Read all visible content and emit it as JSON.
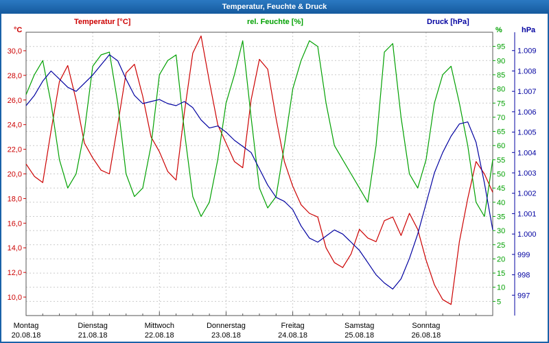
{
  "window": {
    "title": "Temperatur, Feuchte & Druck"
  },
  "chart_data": {
    "type": "line",
    "title": "Temperatur, Feuchte & Druck",
    "sample_interval_hours": 3,
    "grid": true,
    "legend_position": "top",
    "x_days": [
      {
        "weekday": "Montag",
        "date": "20.08.18"
      },
      {
        "weekday": "Dienstag",
        "date": "21.08.18"
      },
      {
        "weekday": "Mittwoch",
        "date": "22.08.18"
      },
      {
        "weekday": "Donnerstag",
        "date": "23.08.18"
      },
      {
        "weekday": "Freitag",
        "date": "24.08.18"
      },
      {
        "weekday": "Samstag",
        "date": "25.08.18"
      },
      {
        "weekday": "Sonntag",
        "date": "26.08.18"
      }
    ],
    "axes": {
      "temp": {
        "unit": "°C",
        "title": "Temperatur [°C]",
        "color": "#cc0000",
        "side": "left",
        "min": 8.5,
        "max": 31.5,
        "ticks": [
          {
            "v": 30,
            "label": "30,0"
          },
          {
            "v": 28,
            "label": "28,0"
          },
          {
            "v": 26,
            "label": "26,0"
          },
          {
            "v": 24,
            "label": "24,0"
          },
          {
            "v": 22,
            "label": "22,0"
          },
          {
            "v": 20,
            "label": "20,0"
          },
          {
            "v": 18,
            "label": "18,0"
          },
          {
            "v": 16,
            "label": "16,0"
          },
          {
            "v": 14,
            "label": "14,0"
          },
          {
            "v": 12,
            "label": "12,0"
          },
          {
            "v": 10,
            "label": "10,0"
          }
        ]
      },
      "hum": {
        "unit": "%",
        "title": "rel. Feuchte [%]",
        "color": "#00a000",
        "side": "right",
        "min": 0,
        "max": 100,
        "ticks": [
          {
            "v": 95,
            "label": "95"
          },
          {
            "v": 90,
            "label": "90"
          },
          {
            "v": 85,
            "label": "85"
          },
          {
            "v": 80,
            "label": "80"
          },
          {
            "v": 75,
            "label": "75"
          },
          {
            "v": 70,
            "label": "70"
          },
          {
            "v": 65,
            "label": "65"
          },
          {
            "v": 60,
            "label": "60"
          },
          {
            "v": 55,
            "label": "55"
          },
          {
            "v": 50,
            "label": "50"
          },
          {
            "v": 45,
            "label": "45"
          },
          {
            "v": 40,
            "label": "40"
          },
          {
            "v": 35,
            "label": "35"
          },
          {
            "v": 30,
            "label": "30"
          },
          {
            "v": 25,
            "label": "25"
          },
          {
            "v": 20,
            "label": "20"
          },
          {
            "v": 15,
            "label": "15"
          },
          {
            "v": 10,
            "label": "10"
          },
          {
            "v": 5,
            "label": "5"
          }
        ]
      },
      "pres": {
        "unit": "hPa",
        "title": "Druck [hPa]",
        "color": "#0000a0",
        "side": "far-right",
        "min": 996,
        "max": 1009.9,
        "ticks": [
          {
            "v": 1009,
            "label": "1.009"
          },
          {
            "v": 1008,
            "label": "1.008"
          },
          {
            "v": 1007,
            "label": "1.007"
          },
          {
            "v": 1006,
            "label": "1.006"
          },
          {
            "v": 1005,
            "label": "1.005"
          },
          {
            "v": 1004,
            "label": "1.004"
          },
          {
            "v": 1003,
            "label": "1.003"
          },
          {
            "v": 1002,
            "label": "1.002"
          },
          {
            "v": 1001,
            "label": "1.001"
          },
          {
            "v": 1000,
            "label": "1.000"
          },
          {
            "v": 999,
            "label": "999"
          },
          {
            "v": 998,
            "label": "998"
          },
          {
            "v": 997,
            "label": "997"
          }
        ]
      }
    },
    "series": [
      {
        "name": "Temperatur",
        "axis": "temp",
        "color": "#cc0000",
        "values": [
          20.8,
          19.8,
          19.3,
          23.5,
          27.5,
          28.8,
          26.0,
          22.5,
          21.3,
          20.3,
          20.0,
          24.0,
          28.2,
          28.9,
          26.3,
          23.0,
          21.8,
          20.2,
          19.5,
          25.0,
          29.8,
          31.2,
          27.5,
          24.0,
          22.5,
          21.0,
          20.5,
          26.0,
          29.3,
          28.5,
          24.5,
          21.0,
          19.0,
          17.5,
          16.8,
          16.5,
          14.0,
          12.8,
          12.4,
          13.5,
          15.5,
          14.8,
          14.5,
          16.2,
          16.5,
          15.0,
          16.8,
          15.5,
          13.0,
          11.0,
          9.8,
          9.4,
          14.5,
          18.0,
          21.0,
          20.0,
          18.5
        ]
      },
      {
        "name": "rel. Feuchte",
        "axis": "hum",
        "color": "#00a000",
        "values": [
          78,
          85,
          90,
          75,
          55,
          45,
          50,
          65,
          88,
          92,
          93,
          75,
          50,
          42,
          45,
          60,
          85,
          90,
          92,
          65,
          42,
          35,
          40,
          55,
          75,
          85,
          97,
          70,
          45,
          38,
          42,
          60,
          80,
          90,
          97,
          95,
          75,
          60,
          55,
          50,
          45,
          40,
          60,
          93,
          96,
          70,
          50,
          45,
          55,
          75,
          85,
          88,
          75,
          60,
          40,
          35,
          55
        ]
      },
      {
        "name": "Druck",
        "axis": "pres",
        "color": "#0000a0",
        "values": [
          1006.3,
          1006.8,
          1007.5,
          1008.0,
          1007.6,
          1007.2,
          1007.0,
          1007.4,
          1007.8,
          1008.3,
          1008.8,
          1008.5,
          1007.6,
          1006.8,
          1006.4,
          1006.5,
          1006.6,
          1006.4,
          1006.3,
          1006.5,
          1006.2,
          1005.6,
          1005.2,
          1005.3,
          1005.0,
          1004.6,
          1004.3,
          1004.0,
          1003.2,
          1002.4,
          1001.8,
          1001.6,
          1001.2,
          1000.4,
          999.8,
          999.6,
          999.9,
          1000.2,
          1000.0,
          999.6,
          999.2,
          998.6,
          998.0,
          997.6,
          997.3,
          997.8,
          998.8,
          1000.0,
          1001.5,
          1003.0,
          1004.0,
          1004.8,
          1005.4,
          1005.5,
          1004.5,
          1002.5,
          1000.2
        ]
      }
    ]
  }
}
